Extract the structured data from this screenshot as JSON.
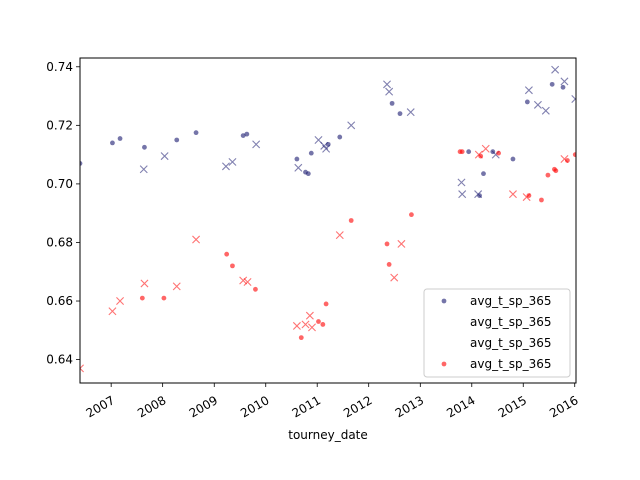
{
  "chart_data": {
    "type": "scatter",
    "xlabel": "tourney_date",
    "ylabel": "",
    "title": "",
    "xlim": [
      "2006-05-25",
      "2016-01-10"
    ],
    "ylim": [
      0.632,
      0.743
    ],
    "grid": false,
    "legend_position": "lower-right",
    "x_ticks": [
      {
        "date": "2007-01-01",
        "label": "2007"
      },
      {
        "date": "2008-01-01",
        "label": "2008"
      },
      {
        "date": "2009-01-01",
        "label": "2009"
      },
      {
        "date": "2010-01-01",
        "label": "2010"
      },
      {
        "date": "2011-01-01",
        "label": "2011"
      },
      {
        "date": "2012-01-01",
        "label": "2012"
      },
      {
        "date": "2013-01-01",
        "label": "2013"
      },
      {
        "date": "2014-01-01",
        "label": "2014"
      },
      {
        "date": "2015-01-01",
        "label": "2015"
      },
      {
        "date": "2016-01-01",
        "label": "2016"
      }
    ],
    "y_ticks": [
      {
        "value": 0.64,
        "label": "0.64"
      },
      {
        "value": 0.66,
        "label": "0.66"
      },
      {
        "value": 0.68,
        "label": "0.68"
      },
      {
        "value": 0.7,
        "label": "0.70"
      },
      {
        "value": 0.72,
        "label": "0.72"
      },
      {
        "value": 0.74,
        "label": "0.74"
      }
    ],
    "series": [
      {
        "name": "avg_t_sp_365",
        "marker": "dot",
        "color": "#191970",
        "points": [
          [
            "2006-05-25",
            0.707
          ],
          [
            "2007-01-10",
            0.714
          ],
          [
            "2007-03-05",
            0.7155
          ],
          [
            "2007-08-25",
            0.7125
          ],
          [
            "2008-04-10",
            0.715
          ],
          [
            "2008-08-25",
            0.7175
          ],
          [
            "2009-07-25",
            0.7165
          ],
          [
            "2009-08-20",
            0.717
          ],
          [
            "2010-08-10",
            0.7085
          ],
          [
            "2010-10-10",
            0.704
          ],
          [
            "2010-10-30",
            0.7035
          ],
          [
            "2010-11-20",
            0.7105
          ],
          [
            "2011-03-20",
            0.7135
          ],
          [
            "2011-06-10",
            0.716
          ],
          [
            "2012-06-15",
            0.7275
          ],
          [
            "2012-08-10",
            0.724
          ],
          [
            "2013-12-10",
            0.711
          ],
          [
            "2014-02-25",
            0.696
          ],
          [
            "2014-03-25",
            0.7035
          ],
          [
            "2014-05-30",
            0.711
          ],
          [
            "2014-10-20",
            0.7085
          ],
          [
            "2015-01-30",
            0.728
          ],
          [
            "2015-07-25",
            0.734
          ],
          [
            "2015-10-10",
            0.733
          ]
        ]
      },
      {
        "name": "avg_t_sp_365",
        "marker": "x",
        "color": "#191970",
        "points": [
          [
            "2007-08-20",
            0.705
          ],
          [
            "2008-01-15",
            0.7095
          ],
          [
            "2009-03-25",
            0.706
          ],
          [
            "2009-05-10",
            0.7075
          ],
          [
            "2009-10-25",
            0.7135
          ],
          [
            "2010-08-20",
            0.7055
          ],
          [
            "2011-01-10",
            0.715
          ],
          [
            "2011-02-20",
            0.713
          ],
          [
            "2011-03-05",
            0.712
          ],
          [
            "2011-08-30",
            0.72
          ],
          [
            "2012-05-10",
            0.734
          ],
          [
            "2012-05-25",
            0.7315
          ],
          [
            "2012-10-25",
            0.7245
          ],
          [
            "2013-10-20",
            0.7005
          ],
          [
            "2013-10-25",
            0.6965
          ],
          [
            "2014-02-15",
            0.6965
          ],
          [
            "2014-06-20",
            0.71
          ],
          [
            "2015-02-10",
            0.732
          ],
          [
            "2015-04-15",
            0.727
          ],
          [
            "2015-06-10",
            0.725
          ],
          [
            "2015-08-15",
            0.739
          ],
          [
            "2015-10-20",
            0.735
          ],
          [
            "2016-01-05",
            0.729
          ]
        ]
      },
      {
        "name": "avg_t_sp_365",
        "marker": "x",
        "color": "#ff0000",
        "points": [
          [
            "2006-05-25",
            0.637
          ],
          [
            "2007-01-10",
            0.6565
          ],
          [
            "2007-03-05",
            0.66
          ],
          [
            "2007-08-25",
            0.666
          ],
          [
            "2008-04-10",
            0.665
          ],
          [
            "2008-08-25",
            0.681
          ],
          [
            "2009-07-25",
            0.667
          ],
          [
            "2009-08-25",
            0.6665
          ],
          [
            "2010-08-10",
            0.6515
          ],
          [
            "2010-10-10",
            0.652
          ],
          [
            "2010-11-10",
            0.655
          ],
          [
            "2010-11-25",
            0.651
          ],
          [
            "2011-06-10",
            0.6825
          ],
          [
            "2012-06-30",
            0.668
          ],
          [
            "2012-08-20",
            0.6795
          ],
          [
            "2014-02-20",
            0.71
          ],
          [
            "2014-04-10",
            0.712
          ],
          [
            "2014-10-20",
            0.6965
          ],
          [
            "2015-01-25",
            0.6955
          ],
          [
            "2015-10-20",
            0.7085
          ]
        ]
      },
      {
        "name": "avg_t_sp_365",
        "marker": "dot",
        "color": "#ff0000",
        "points": [
          [
            "2007-08-10",
            0.661
          ],
          [
            "2008-01-10",
            0.661
          ],
          [
            "2009-03-30",
            0.676
          ],
          [
            "2009-05-10",
            0.672
          ],
          [
            "2009-10-20",
            0.664
          ],
          [
            "2010-09-10",
            0.6475
          ],
          [
            "2011-01-10",
            0.653
          ],
          [
            "2011-02-10",
            0.652
          ],
          [
            "2011-03-05",
            0.659
          ],
          [
            "2011-08-30",
            0.6875
          ],
          [
            "2012-05-10",
            0.6795
          ],
          [
            "2012-05-25",
            0.6725
          ],
          [
            "2012-10-30",
            0.6895
          ],
          [
            "2013-10-10",
            0.711
          ],
          [
            "2013-10-25",
            0.711
          ],
          [
            "2014-03-05",
            0.7095
          ],
          [
            "2014-07-10",
            0.7105
          ],
          [
            "2015-02-10",
            0.696
          ],
          [
            "2015-05-10",
            0.6945
          ],
          [
            "2015-06-25",
            0.703
          ],
          [
            "2015-08-10",
            0.705
          ],
          [
            "2015-08-20",
            0.7045
          ],
          [
            "2015-11-10",
            0.708
          ],
          [
            "2016-01-05",
            0.71
          ]
        ]
      }
    ]
  }
}
